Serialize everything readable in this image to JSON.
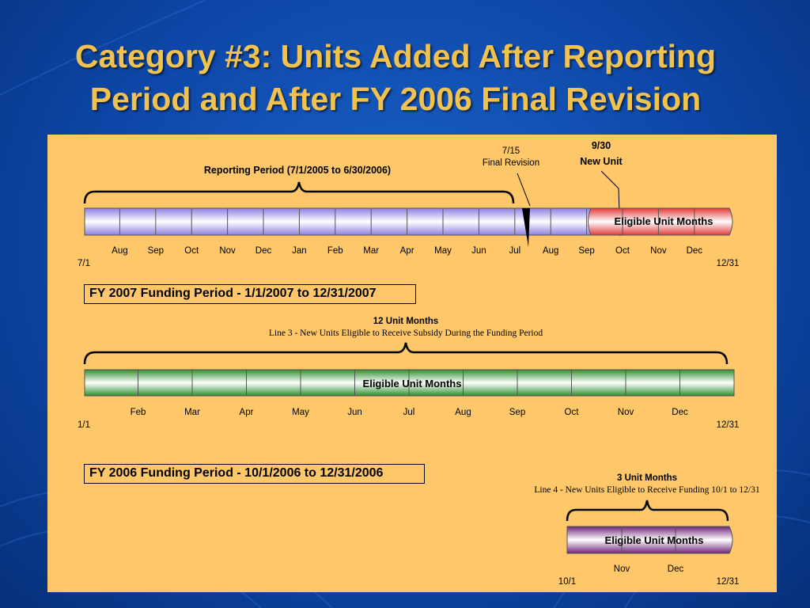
{
  "title": {
    "line1": "Category #3: Units Added After Reporting",
    "line2": "Period and After FY 2006 Final Revision"
  },
  "colors": {
    "panel": "#fdc76a",
    "title": "#f2c24f",
    "timeline_purple": "#9b8ee6",
    "timeline_red": "#e23a3a",
    "timeline_green": "#3e9b3e",
    "timeline_violet": "#7a2f86"
  },
  "timeline1": {
    "reporting_period_label": "Reporting Period (7/1/2005 to 6/30/2006)",
    "final_revision_date": "7/15",
    "final_revision_label": "Final Revision",
    "new_unit_date": "9/30",
    "new_unit_label": "New Unit",
    "eligible_label": "Eligible Unit Months",
    "months": [
      "Aug",
      "Sep",
      "Oct",
      "Nov",
      "Dec",
      "Jan",
      "Feb",
      "Mar",
      "Apr",
      "May",
      "Jun",
      "Jul",
      "Aug",
      "Sep",
      "Oct",
      "Nov",
      "Dec"
    ],
    "start_label": "7/1",
    "end_label": "12/31"
  },
  "timeline2": {
    "box_label": "FY 2007 Funding Period - 1/1/2007 to 12/31/2007",
    "heading": "12 Unit Months",
    "subheading": "Line 3 - New Units Eligible to Receive Subsidy During the Funding Period",
    "eligible_label": "Eligible Unit Months",
    "months": [
      "Feb",
      "Mar",
      "Apr",
      "May",
      "Jun",
      "Jul",
      "Aug",
      "Sep",
      "Oct",
      "Nov",
      "Dec"
    ],
    "start_label": "1/1",
    "end_label": "12/31"
  },
  "timeline3": {
    "box_label": "FY 2006 Funding Period - 10/1/2006 to 12/31/2006",
    "heading": "3 Unit Months",
    "subheading": "Line 4 - New Units Eligible to Receive Funding 10/1 to 12/31",
    "eligible_label": "Eligible Unit Months",
    "months": [
      "Nov",
      "Dec"
    ],
    "start_label": "10/1",
    "end_label": "12/31"
  }
}
